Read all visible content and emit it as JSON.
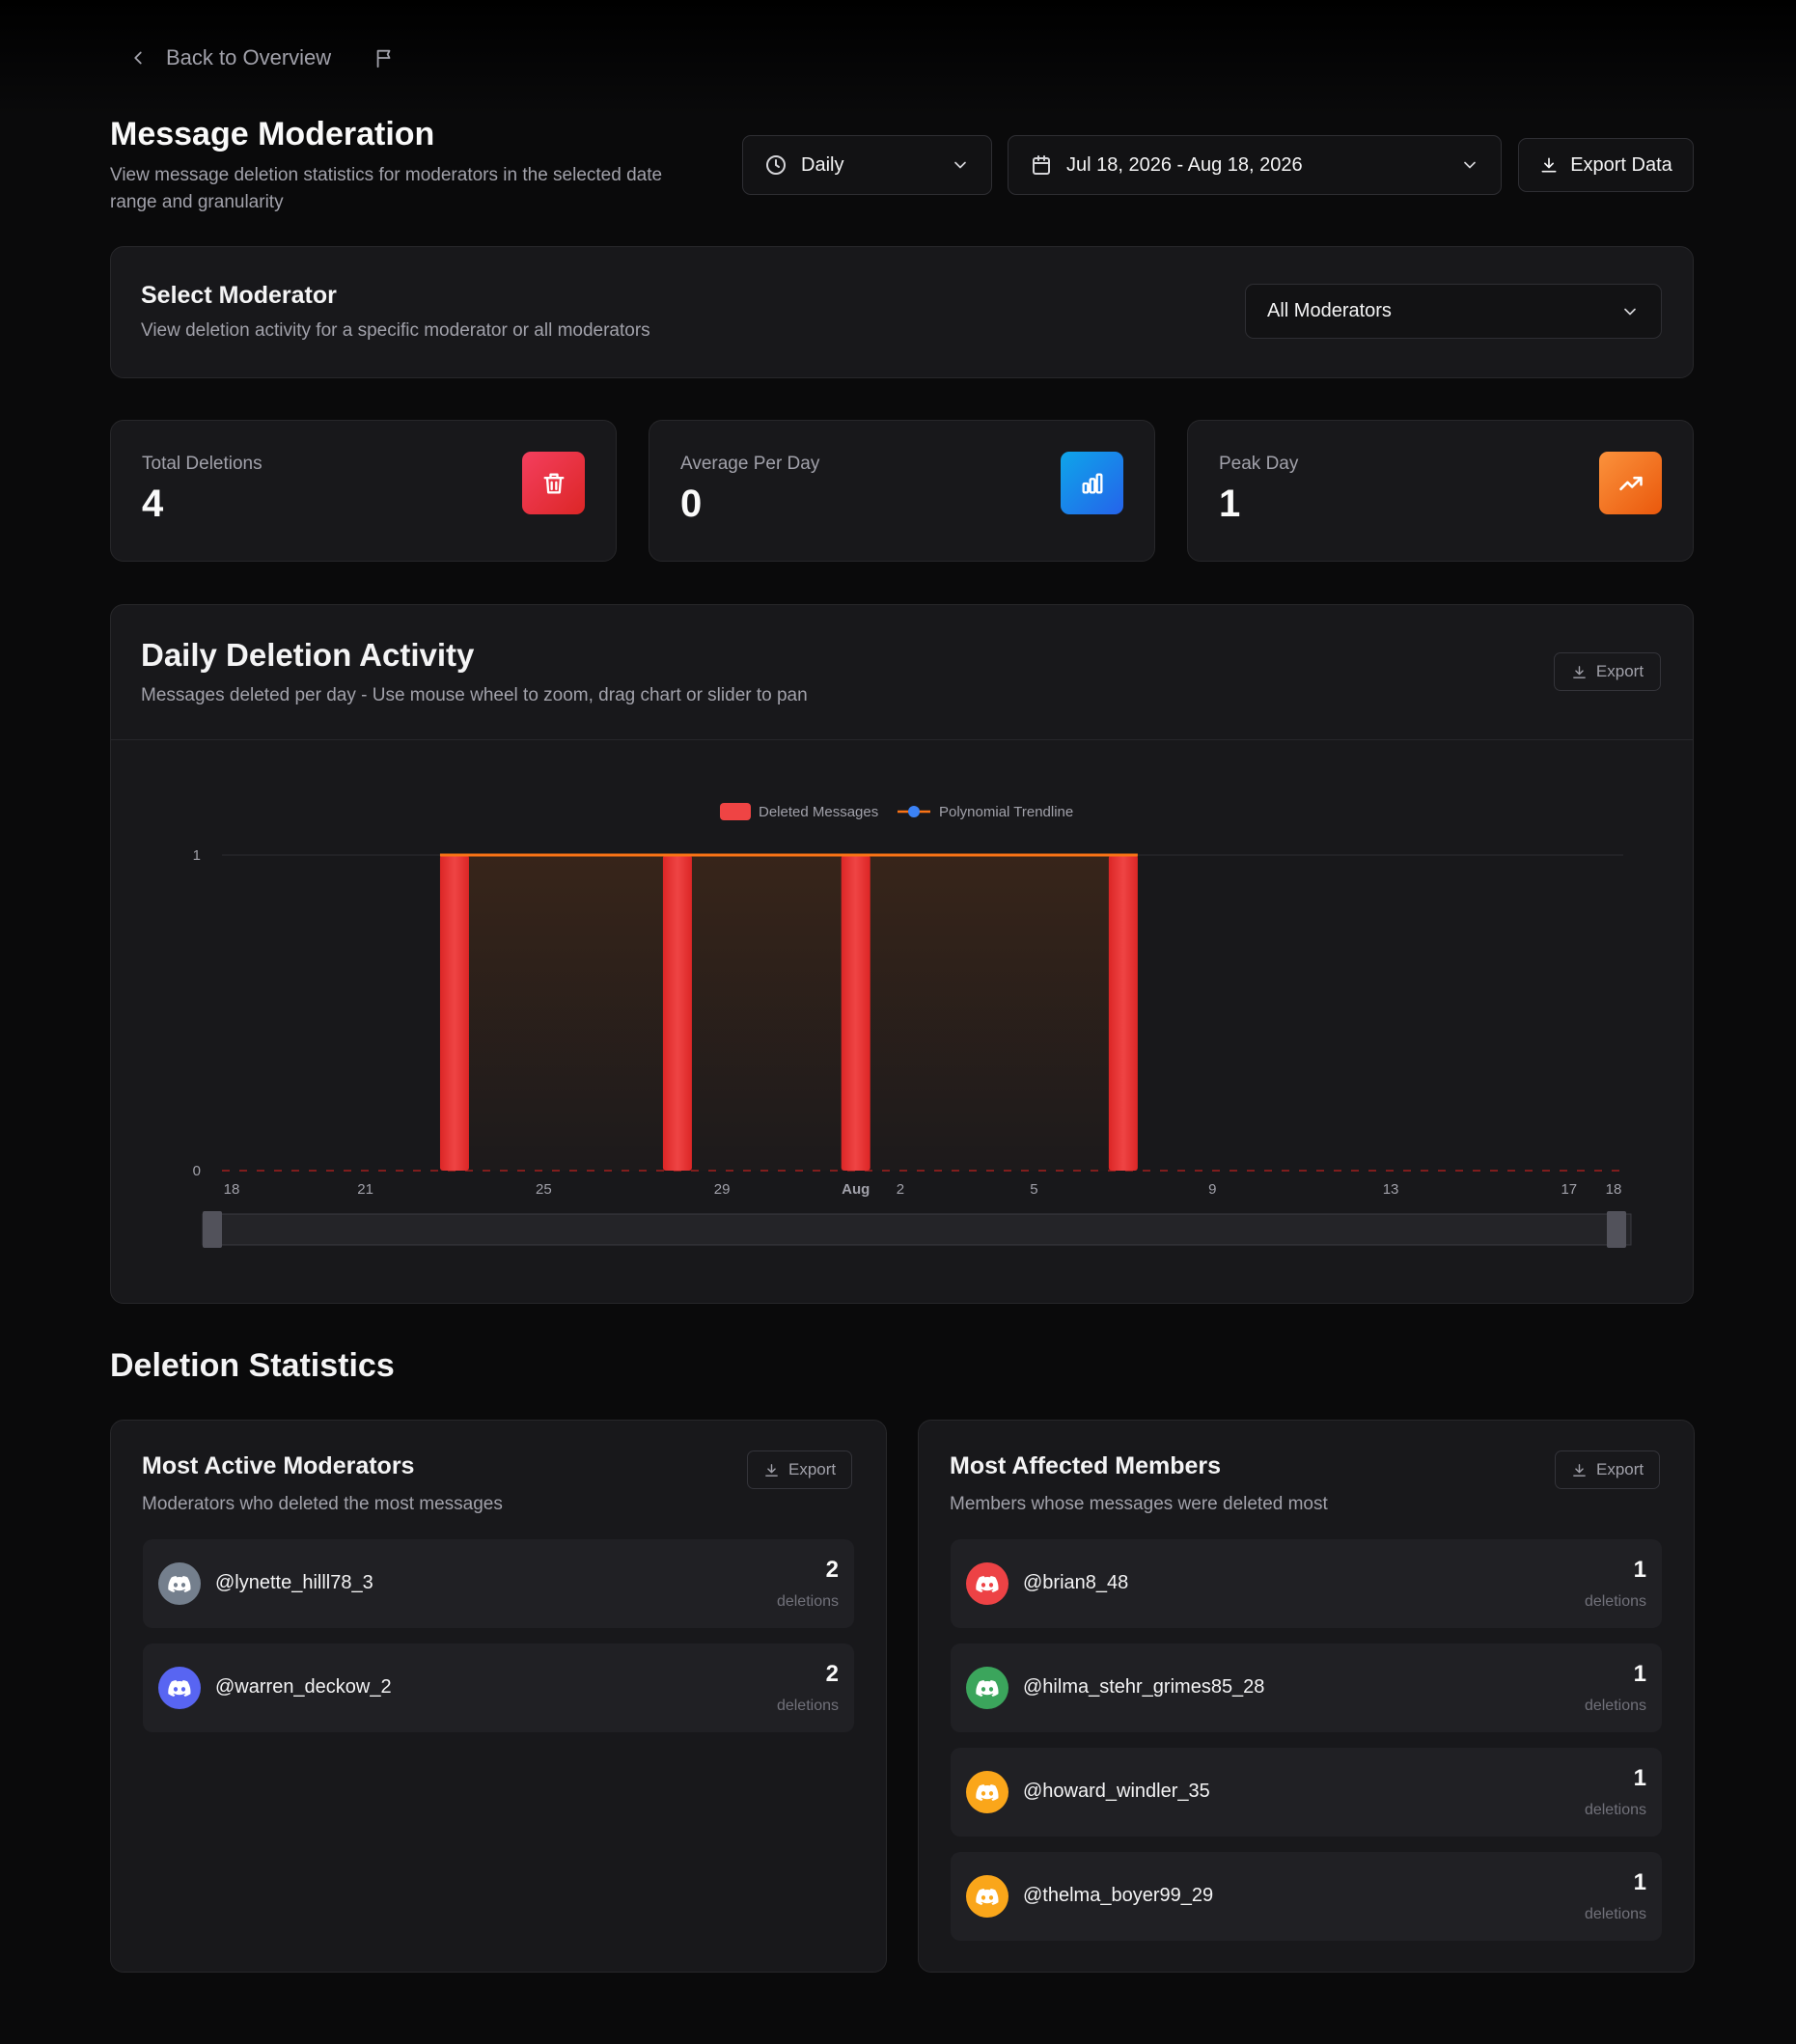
{
  "nav": {
    "back_label": "Back to Overview"
  },
  "header": {
    "title": "Message Moderation",
    "subtitle": "View message deletion statistics for moderators in the selected date range and granularity",
    "granularity": "Daily",
    "date_range": "Jul 18, 2026 - Aug 18, 2026",
    "export_label": "Export Data"
  },
  "moderator_filter": {
    "title": "Select Moderator",
    "subtitle": "View deletion activity for a specific moderator or all moderators",
    "selected": "All Moderators"
  },
  "stats": [
    {
      "label": "Total Deletions",
      "value": "4",
      "icon": "trash-icon",
      "color_from": "#f43f5e",
      "color_to": "#dc2626"
    },
    {
      "label": "Average Per Day",
      "value": "0",
      "icon": "bar-chart-icon",
      "color_from": "#0ea5e9",
      "color_to": "#2563eb"
    },
    {
      "label": "Peak Day",
      "value": "1",
      "icon": "trending-up-icon",
      "color_from": "#fb923c",
      "color_to": "#ea580c"
    }
  ],
  "activity": {
    "title": "Daily Deletion Activity",
    "subtitle": "Messages deleted per day - Use mouse wheel to zoom, drag chart or slider to pan",
    "export_label": "Export"
  },
  "chart_data": {
    "type": "bar",
    "x": [
      "Jul 18",
      "Jul 19",
      "Jul 20",
      "Jul 21",
      "Jul 22",
      "Jul 23",
      "Jul 24",
      "Jul 25",
      "Jul 26",
      "Jul 27",
      "Jul 28",
      "Jul 29",
      "Jul 30",
      "Jul 31",
      "Aug 1",
      "Aug 2",
      "Aug 3",
      "Aug 4",
      "Aug 5",
      "Aug 6",
      "Aug 7",
      "Aug 8",
      "Aug 9",
      "Aug 10",
      "Aug 11",
      "Aug 12",
      "Aug 13",
      "Aug 14",
      "Aug 15",
      "Aug 16",
      "Aug 17",
      "Aug 18"
    ],
    "series": [
      {
        "name": "Deleted Messages",
        "type": "bar",
        "color": "#ef4444",
        "values": [
          0,
          0,
          0,
          0,
          0,
          1,
          0,
          0,
          0,
          0,
          1,
          0,
          0,
          0,
          1,
          0,
          0,
          0,
          0,
          0,
          1,
          0,
          0,
          0,
          0,
          0,
          0,
          0,
          0,
          0,
          0,
          0
        ]
      },
      {
        "name": "Polynomial Trendline",
        "type": "line",
        "color": "#f97316",
        "marker_color": "#3b82f6",
        "values": [
          0,
          0,
          0,
          0,
          0,
          1,
          1,
          1,
          1,
          1,
          1,
          1,
          1,
          1,
          1,
          1,
          1,
          1,
          1,
          1,
          1,
          0,
          0,
          0,
          0,
          0,
          0,
          0,
          0,
          0,
          0,
          0
        ]
      }
    ],
    "x_tick_labels": [
      {
        "index": 0,
        "label": "18"
      },
      {
        "index": 3,
        "label": "21"
      },
      {
        "index": 7,
        "label": "25"
      },
      {
        "index": 11,
        "label": "29"
      },
      {
        "index": 14,
        "label": "Aug",
        "bold": true
      },
      {
        "index": 15,
        "label": "2"
      },
      {
        "index": 18,
        "label": "5"
      },
      {
        "index": 22,
        "label": "9"
      },
      {
        "index": 26,
        "label": "13"
      },
      {
        "index": 30,
        "label": "17"
      },
      {
        "index": 31,
        "label": "18"
      }
    ],
    "y_ticks": [
      0,
      1
    ],
    "ylim": [
      0,
      1
    ],
    "legend": "top-center",
    "grid": true,
    "slider": true
  },
  "statistics": {
    "title": "Deletion Statistics",
    "moderators": {
      "title": "Most Active Moderators",
      "subtitle": "Moderators who deleted the most messages",
      "export_label": "Export",
      "items": [
        {
          "name": "@lynette_hilll78_3",
          "count": "2",
          "unit": "deletions",
          "avatar_color": "#747f8d"
        },
        {
          "name": "@warren_deckow_2",
          "count": "2",
          "unit": "deletions",
          "avatar_color": "#5865f2"
        }
      ]
    },
    "members": {
      "title": "Most Affected Members",
      "subtitle": "Members whose messages were deleted most",
      "export_label": "Export",
      "items": [
        {
          "name": "@brian8_48",
          "count": "1",
          "unit": "deletions",
          "avatar_color": "#ed4245"
        },
        {
          "name": "@hilma_stehr_grimes85_28",
          "count": "1",
          "unit": "deletions",
          "avatar_color": "#3ba55c"
        },
        {
          "name": "@howard_windler_35",
          "count": "1",
          "unit": "deletions",
          "avatar_color": "#faa61a"
        },
        {
          "name": "@thelma_boyer99_29",
          "count": "1",
          "unit": "deletions",
          "avatar_color": "#faa61a"
        }
      ]
    }
  }
}
